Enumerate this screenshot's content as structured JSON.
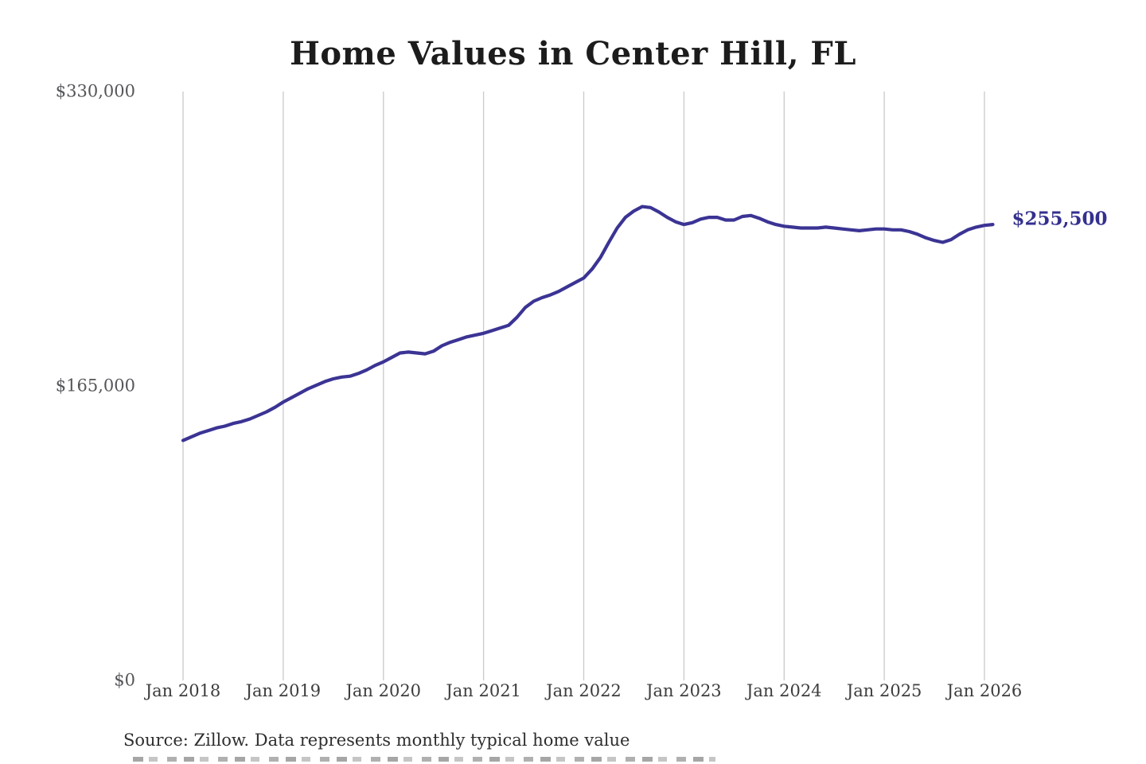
{
  "chart": {
    "title": "Home Values in Center Hill, FL",
    "end_label": "$255,500",
    "source_note": "Source: Zillow. Data represents monthly typical home value",
    "colors": {
      "line": "#3b3494",
      "annotation": "#34308e",
      "grid": "#cacaca",
      "title_text": "#1c1c1c",
      "y_tick_text": "#55565a",
      "x_tick_text": "#3d3d3d",
      "source_text": "#2e2e2e",
      "background": "#ffffff"
    }
  },
  "chart_data": {
    "type": "line",
    "title": "Home Values in Center Hill, FL",
    "xlabel": "",
    "ylabel": "",
    "ylim": [
      0,
      330000
    ],
    "grid": "vertical-only",
    "legend": "none",
    "y_ticks": [
      {
        "value": 0,
        "label": "$0"
      },
      {
        "value": 165000,
        "label": "$165,000"
      },
      {
        "value": 330000,
        "label": "$330,000"
      }
    ],
    "x_ticks": [
      {
        "month_index": 0,
        "label": "Jan 2018"
      },
      {
        "month_index": 12,
        "label": "Jan 2019"
      },
      {
        "month_index": 24,
        "label": "Jan 2020"
      },
      {
        "month_index": 36,
        "label": "Jan 2021"
      },
      {
        "month_index": 48,
        "label": "Jan 2022"
      },
      {
        "month_index": 60,
        "label": "Jan 2023"
      },
      {
        "month_index": 72,
        "label": "Jan 2024"
      },
      {
        "month_index": 84,
        "label": "Jan 2025"
      },
      {
        "month_index": 96,
        "label": "Jan 2026"
      }
    ],
    "series": [
      {
        "name": "Monthly typical home value",
        "start_month": "2018-01",
        "frequency": "monthly",
        "latest_value": 255500,
        "values": [
          134500,
          136500,
          138500,
          140000,
          141500,
          142500,
          144000,
          145000,
          146500,
          148500,
          150500,
          153000,
          156000,
          158500,
          161000,
          163500,
          165500,
          167500,
          169000,
          170000,
          170500,
          172000,
          174000,
          176500,
          178500,
          181000,
          183500,
          184000,
          183500,
          183000,
          184500,
          187500,
          189500,
          191000,
          192500,
          193500,
          194500,
          196000,
          197500,
          199000,
          203500,
          209000,
          212500,
          214500,
          216000,
          218000,
          220500,
          223000,
          225500,
          230500,
          237000,
          245500,
          253500,
          259500,
          263000,
          265500,
          265000,
          262500,
          259500,
          257000,
          255500,
          256500,
          258500,
          259500,
          259500,
          258000,
          258000,
          260000,
          260500,
          259000,
          257000,
          255500,
          254500,
          254000,
          253500,
          253500,
          253500,
          254000,
          253500,
          253000,
          252500,
          252000,
          252500,
          253000,
          253000,
          252500,
          252500,
          251500,
          250000,
          248000,
          246500,
          245500,
          247000,
          250000,
          252500,
          254000,
          255000,
          255500
        ]
      }
    ]
  }
}
